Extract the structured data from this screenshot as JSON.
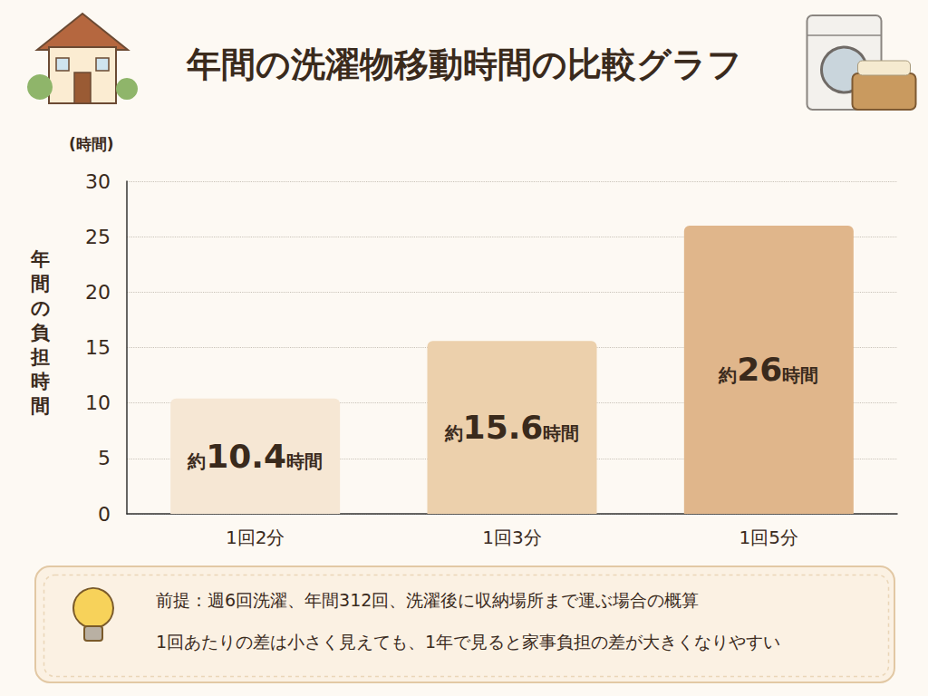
{
  "chart_data": {
    "type": "bar",
    "title": "年間の洗濯物移動時間の比較グラフ",
    "ylabel": "年間の負担時間",
    "y_unit_label": "(時間)",
    "categories": [
      "1回2分",
      "1回3分",
      "1回5分"
    ],
    "values": [
      10.4,
      15.6,
      26
    ],
    "value_labels": [
      "約10.4時間",
      "約15.6時間",
      "約26時間"
    ],
    "colors": [
      "#f6e7d4",
      "#ecd0ac",
      "#e0b68b"
    ],
    "ylim": [
      0,
      30
    ],
    "yticks": [
      0,
      5,
      10,
      15,
      20,
      25,
      30
    ],
    "grid": true,
    "data_labels": true,
    "annotations": [
      "前提：週6回洗濯、年間312回、洗濯後に収納場所まで運ぶ場合の概算",
      "1回あたりの差は小さく見えても、1年で見ると家事負担の差が大きくなりやすい"
    ]
  }
}
